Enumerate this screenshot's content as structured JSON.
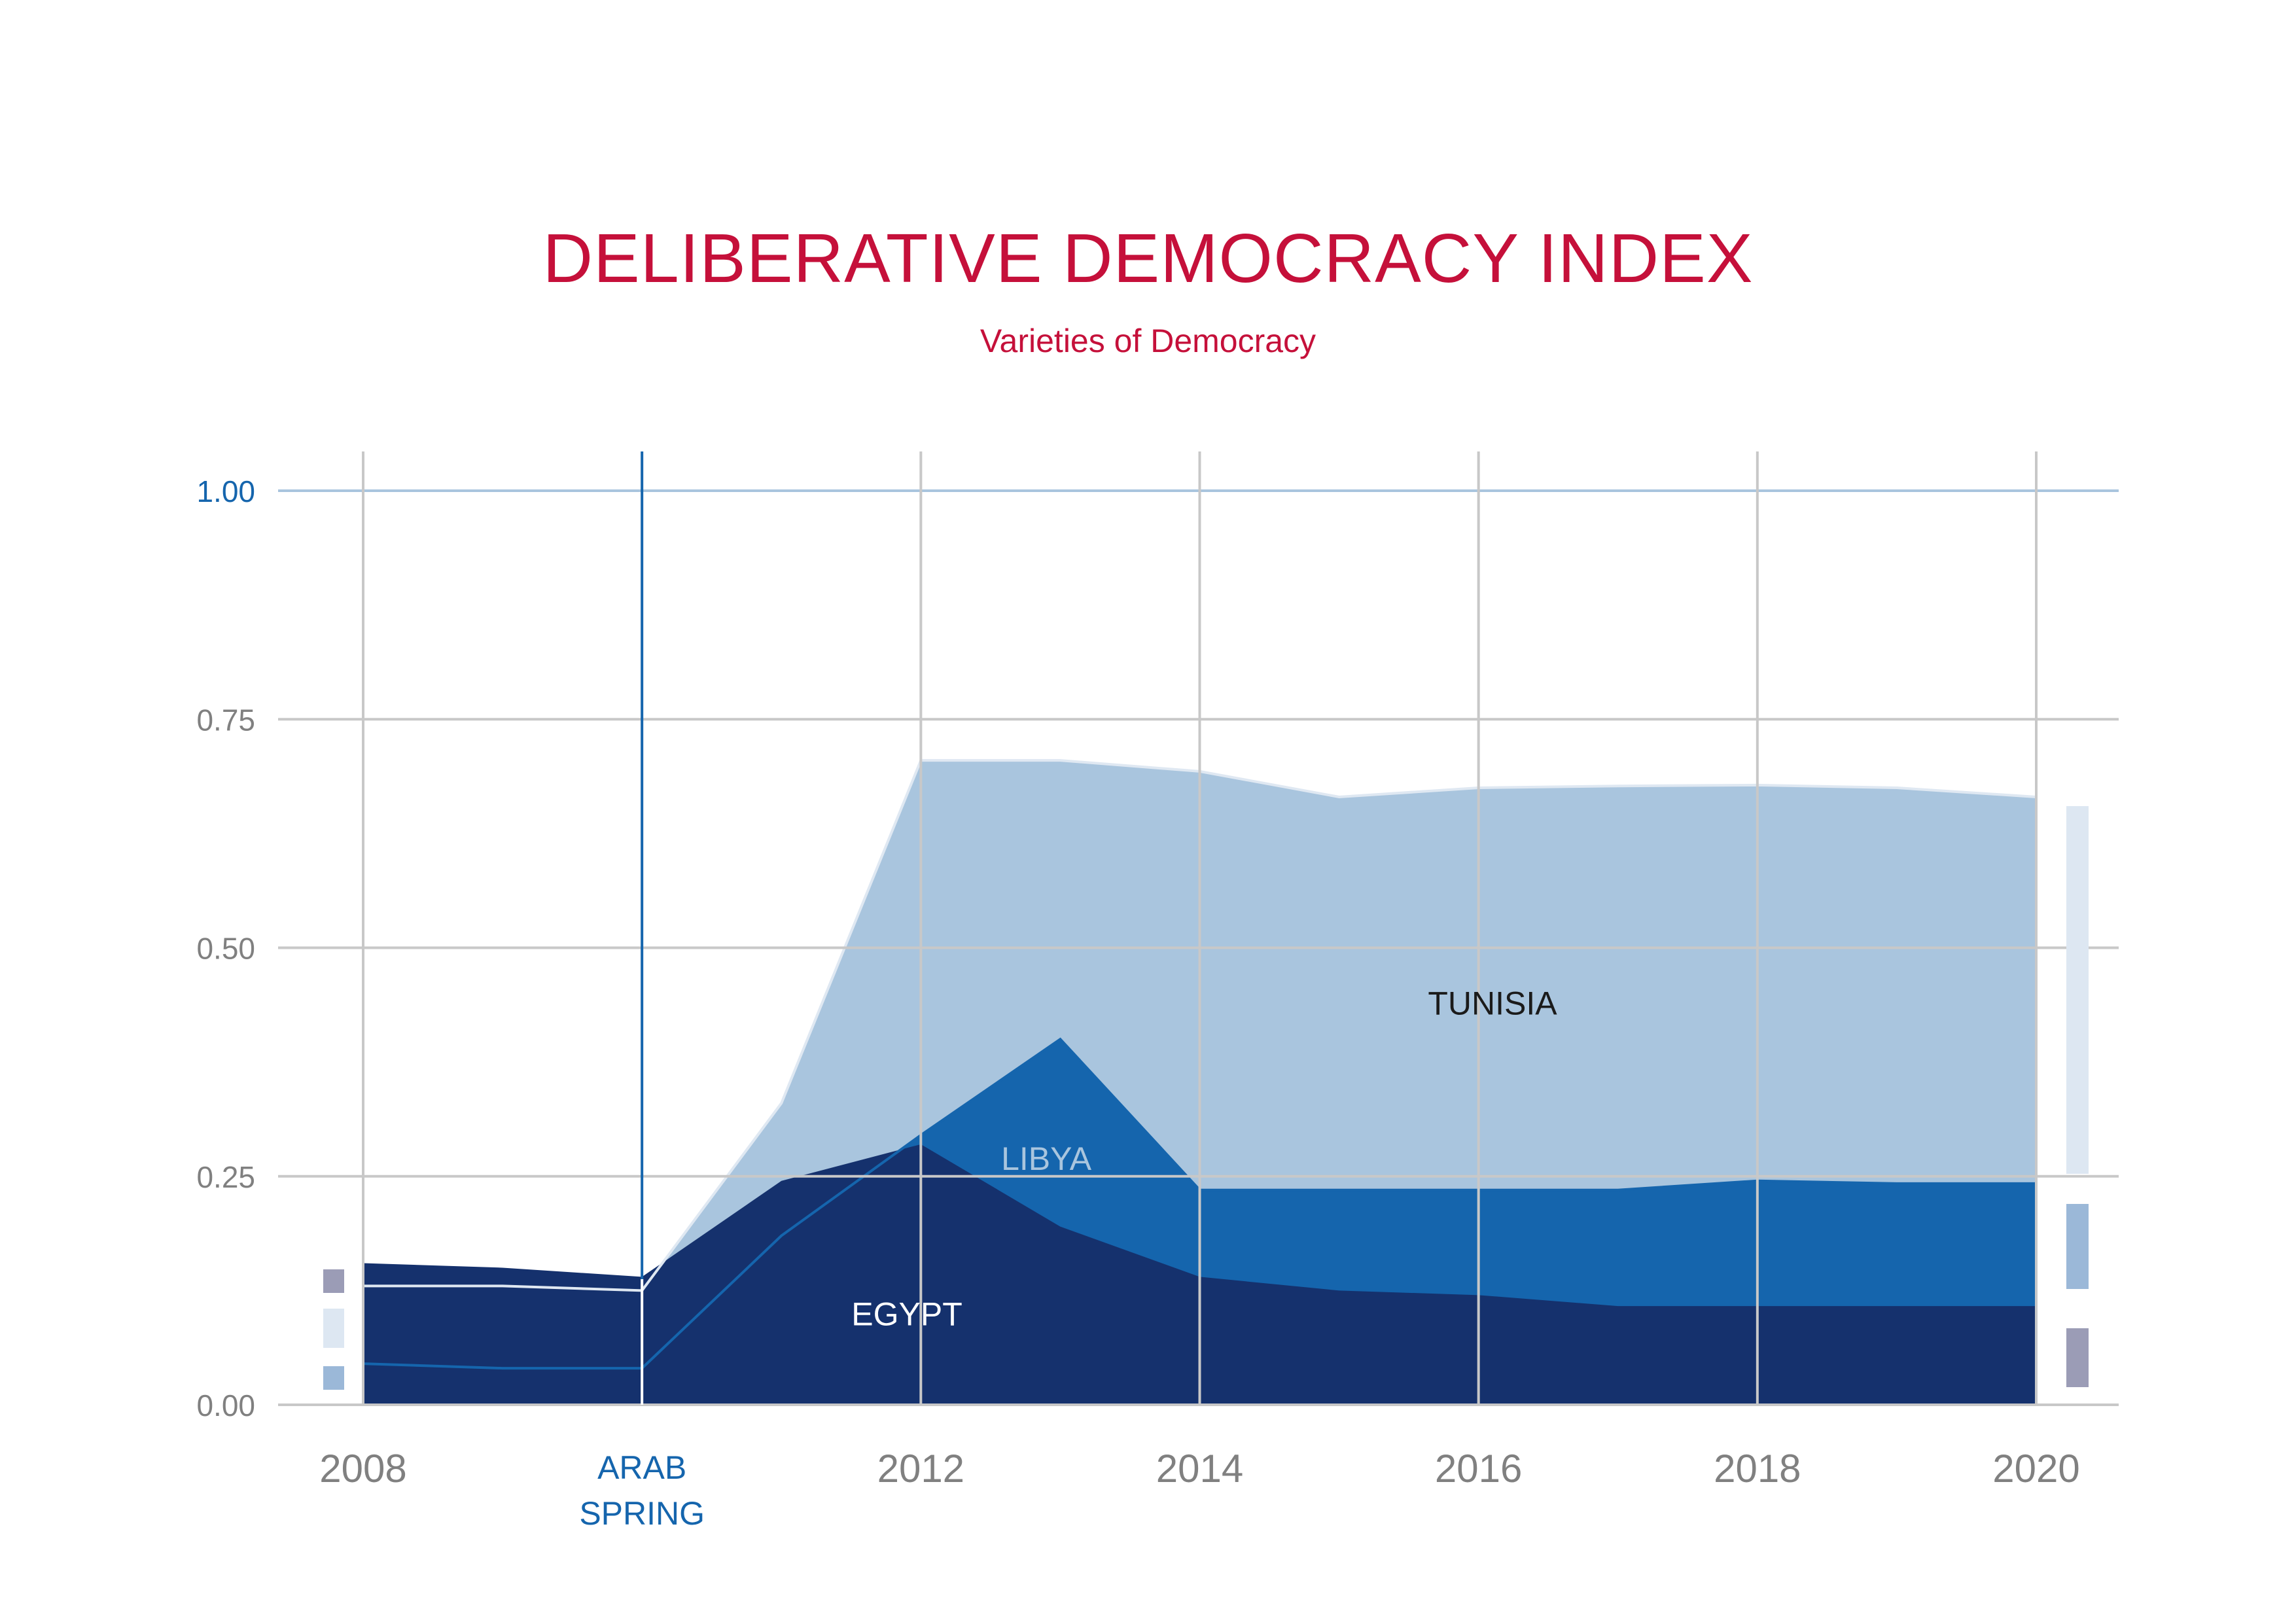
{
  "title": "DELIBERATIVE DEMOCRACY INDEX",
  "subtitle": "Varieties of Democracy",
  "colors": {
    "title": "#c5103a",
    "egypt": "#15316d",
    "libya": "#1565ad",
    "tunisia": "#a9c5de",
    "event": "#1565ad",
    "grid": "#c8c8c8"
  },
  "chart_data": {
    "type": "area",
    "title": "DELIBERATIVE DEMOCRACY INDEX",
    "subtitle": "Varieties of Democracy",
    "x": [
      2008,
      2009,
      2010,
      2011,
      2012,
      2013,
      2014,
      2015,
      2016,
      2017,
      2018,
      2019,
      2020
    ],
    "xlim": [
      2008,
      2020
    ],
    "ylim": [
      0,
      1
    ],
    "yticks": [
      "0.00",
      "0.25",
      "0.50",
      "0.75",
      "1.00"
    ],
    "xticks": [
      {
        "x": 2008,
        "label": "2008"
      },
      {
        "x": 2012,
        "label": "2012"
      },
      {
        "x": 2014,
        "label": "2014"
      },
      {
        "x": 2016,
        "label": "2016"
      },
      {
        "x": 2018,
        "label": "2018"
      },
      {
        "x": 2020,
        "label": "2020"
      }
    ],
    "grid": true,
    "event": {
      "x": 2010,
      "label_line1": "ARAB",
      "label_line2": "SPRING"
    },
    "series": [
      {
        "name": "TUNISIA",
        "color": "#a9c5de",
        "values": [
          0.13,
          0.13,
          0.125,
          0.33,
          0.705,
          0.705,
          0.693,
          0.665,
          0.675,
          0.677,
          0.678,
          0.675,
          0.665
        ]
      },
      {
        "name": "LIBYA",
        "color": "#1565ad",
        "values": [
          0.045,
          0.04,
          0.04,
          0.185,
          0.295,
          0.4,
          0.235,
          0.235,
          0.235,
          0.235,
          0.245,
          0.242,
          0.242
        ]
      },
      {
        "name": "EGYPT",
        "color": "#15316d",
        "values": [
          0.155,
          0.15,
          0.14,
          0.245,
          0.285,
          0.195,
          0.14,
          0.125,
          0.12,
          0.108,
          0.108,
          0.108,
          0.108
        ]
      }
    ]
  }
}
